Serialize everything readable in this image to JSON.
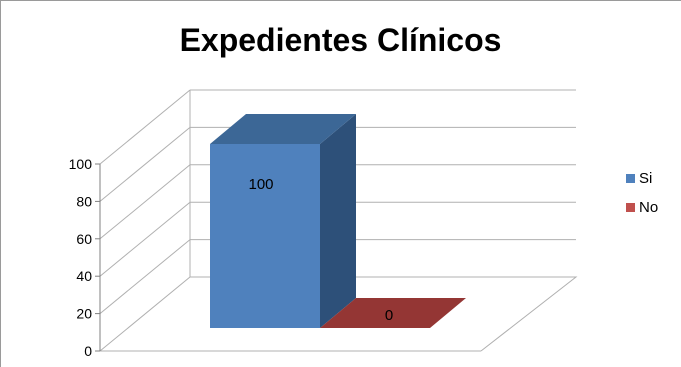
{
  "chart_data": {
    "type": "bar",
    "title": "Expedientes Clínicos",
    "categories": [
      "Si",
      "No"
    ],
    "values": [
      100,
      0
    ],
    "data_labels": [
      "100",
      "0"
    ],
    "ylim": [
      0,
      100
    ],
    "yticks": [
      0,
      20,
      40,
      60,
      80,
      100
    ],
    "ytick_labels": [
      "0",
      "20",
      "40",
      "60",
      "80",
      "100"
    ],
    "grid": true,
    "three_d": true,
    "legend": {
      "position": "right",
      "entries": [
        {
          "name": "Si",
          "color": "#4f81bd"
        },
        {
          "name": "No",
          "color": "#c0504d"
        }
      ]
    },
    "colors": {
      "si_front": "#4f81bd",
      "si_top": "#3c6796",
      "si_side": "#2d5079",
      "no_front": "#c0504d",
      "no_top": "#943634",
      "gridline": "#b0b0b0"
    }
  }
}
